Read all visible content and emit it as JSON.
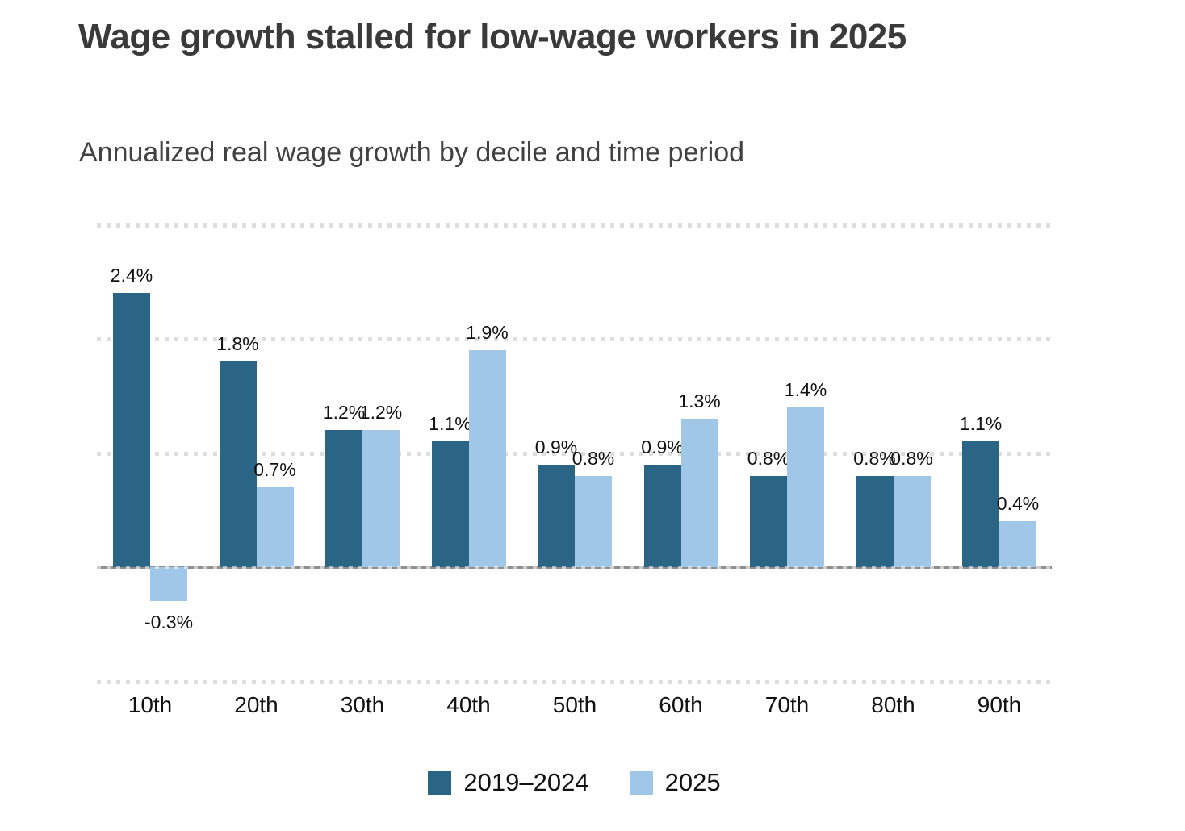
{
  "title": "Wage growth stalled for low-wage workers in 2025",
  "subtitle": "Annualized real wage growth by decile and time period",
  "colors": {
    "series_2019_2024": "#2b6586",
    "series_2025": "#a1c7e8",
    "gridline": "#dedede",
    "zero_line": "#8f8f8f",
    "title_text": "#3a3a3a",
    "subtitle_text": "#414141",
    "label_text": "#111111"
  },
  "chart_data": {
    "type": "bar",
    "title": "Wage growth stalled for low-wage workers in 2025",
    "subtitle": "Annualized real wage growth by decile and time period",
    "categories": [
      "10th",
      "20th",
      "30th",
      "40th",
      "50th",
      "60th",
      "70th",
      "80th",
      "90th"
    ],
    "series": [
      {
        "name": "2019–2024",
        "color": "#2b6586",
        "values": [
          2.4,
          1.8,
          1.2,
          1.1,
          0.9,
          0.9,
          0.8,
          0.8,
          1.1
        ],
        "labels": [
          "2.4%",
          "1.8%",
          "1.2%",
          "1.1%",
          "0.9%",
          "0.9%",
          "0.8%",
          "0.8%",
          "1.1%"
        ]
      },
      {
        "name": "2025",
        "color": "#a1c7e8",
        "values": [
          -0.3,
          0.7,
          1.2,
          1.9,
          0.8,
          1.3,
          1.4,
          0.8,
          0.4
        ],
        "labels": [
          "-0.3%",
          "0.7%",
          "1.2%",
          "1.9%",
          "0.8%",
          "1.3%",
          "1.4%",
          "0.8%",
          "0.4%"
        ]
      }
    ],
    "xlabel": "",
    "ylabel": "",
    "ylim": [
      -1,
      3
    ],
    "gridlines_at": [
      3,
      2,
      1,
      0,
      -1
    ],
    "grid_style": "dotted",
    "y_tick_labels_shown": false,
    "value_labels_shown": true,
    "legend_position": "bottom"
  },
  "legend": {
    "items": [
      {
        "label": "2019–2024",
        "swatch": "#2b6586"
      },
      {
        "label": "2025",
        "swatch": "#a1c7e8"
      }
    ]
  }
}
